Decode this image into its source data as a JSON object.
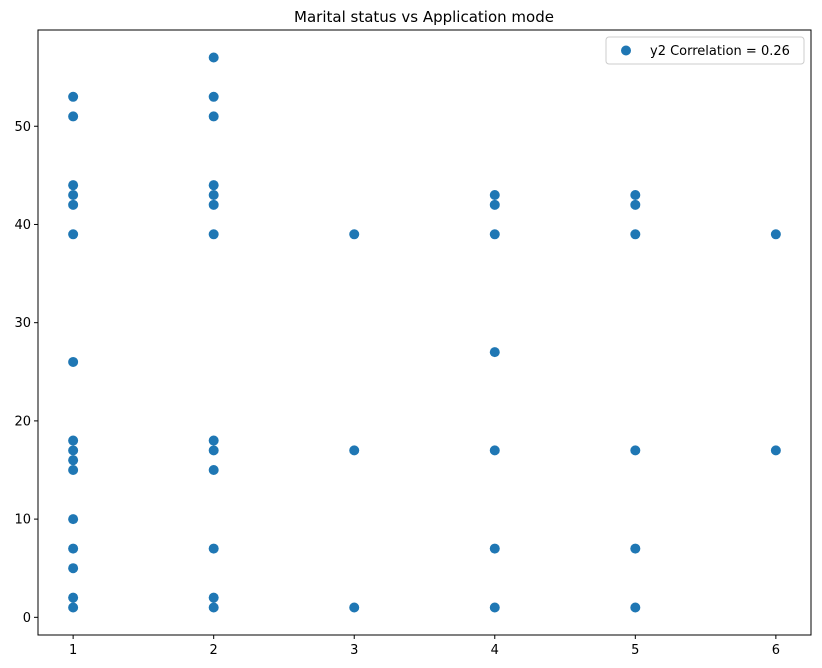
{
  "chart_data": {
    "type": "scatter",
    "title": "Marital status vs Application mode",
    "xlabel": "",
    "ylabel": "",
    "xlim": [
      0.75,
      6.25
    ],
    "ylim": [
      -1.8,
      59.8
    ],
    "xticks": [
      1,
      2,
      3,
      4,
      5,
      6
    ],
    "yticks": [
      0,
      10,
      20,
      30,
      40,
      50
    ],
    "grid": false,
    "legend_position": "top-right",
    "series": [
      {
        "name": "y2 Correlation = 0.26",
        "color": "#1f77b4",
        "points": [
          [
            1,
            1
          ],
          [
            1,
            2
          ],
          [
            1,
            5
          ],
          [
            1,
            7
          ],
          [
            1,
            10
          ],
          [
            1,
            15
          ],
          [
            1,
            16
          ],
          [
            1,
            17
          ],
          [
            1,
            18
          ],
          [
            1,
            26
          ],
          [
            1,
            39
          ],
          [
            1,
            42
          ],
          [
            1,
            43
          ],
          [
            1,
            44
          ],
          [
            1,
            51
          ],
          [
            1,
            53
          ],
          [
            2,
            1
          ],
          [
            2,
            2
          ],
          [
            2,
            7
          ],
          [
            2,
            15
          ],
          [
            2,
            17
          ],
          [
            2,
            18
          ],
          [
            2,
            39
          ],
          [
            2,
            42
          ],
          [
            2,
            43
          ],
          [
            2,
            44
          ],
          [
            2,
            51
          ],
          [
            2,
            53
          ],
          [
            2,
            57
          ],
          [
            3,
            1
          ],
          [
            3,
            17
          ],
          [
            3,
            39
          ],
          [
            4,
            1
          ],
          [
            4,
            7
          ],
          [
            4,
            17
          ],
          [
            4,
            27
          ],
          [
            4,
            39
          ],
          [
            4,
            42
          ],
          [
            4,
            43
          ],
          [
            5,
            1
          ],
          [
            5,
            7
          ],
          [
            5,
            17
          ],
          [
            5,
            39
          ],
          [
            5,
            42
          ],
          [
            5,
            43
          ],
          [
            6,
            17
          ],
          [
            6,
            39
          ]
        ]
      }
    ]
  }
}
